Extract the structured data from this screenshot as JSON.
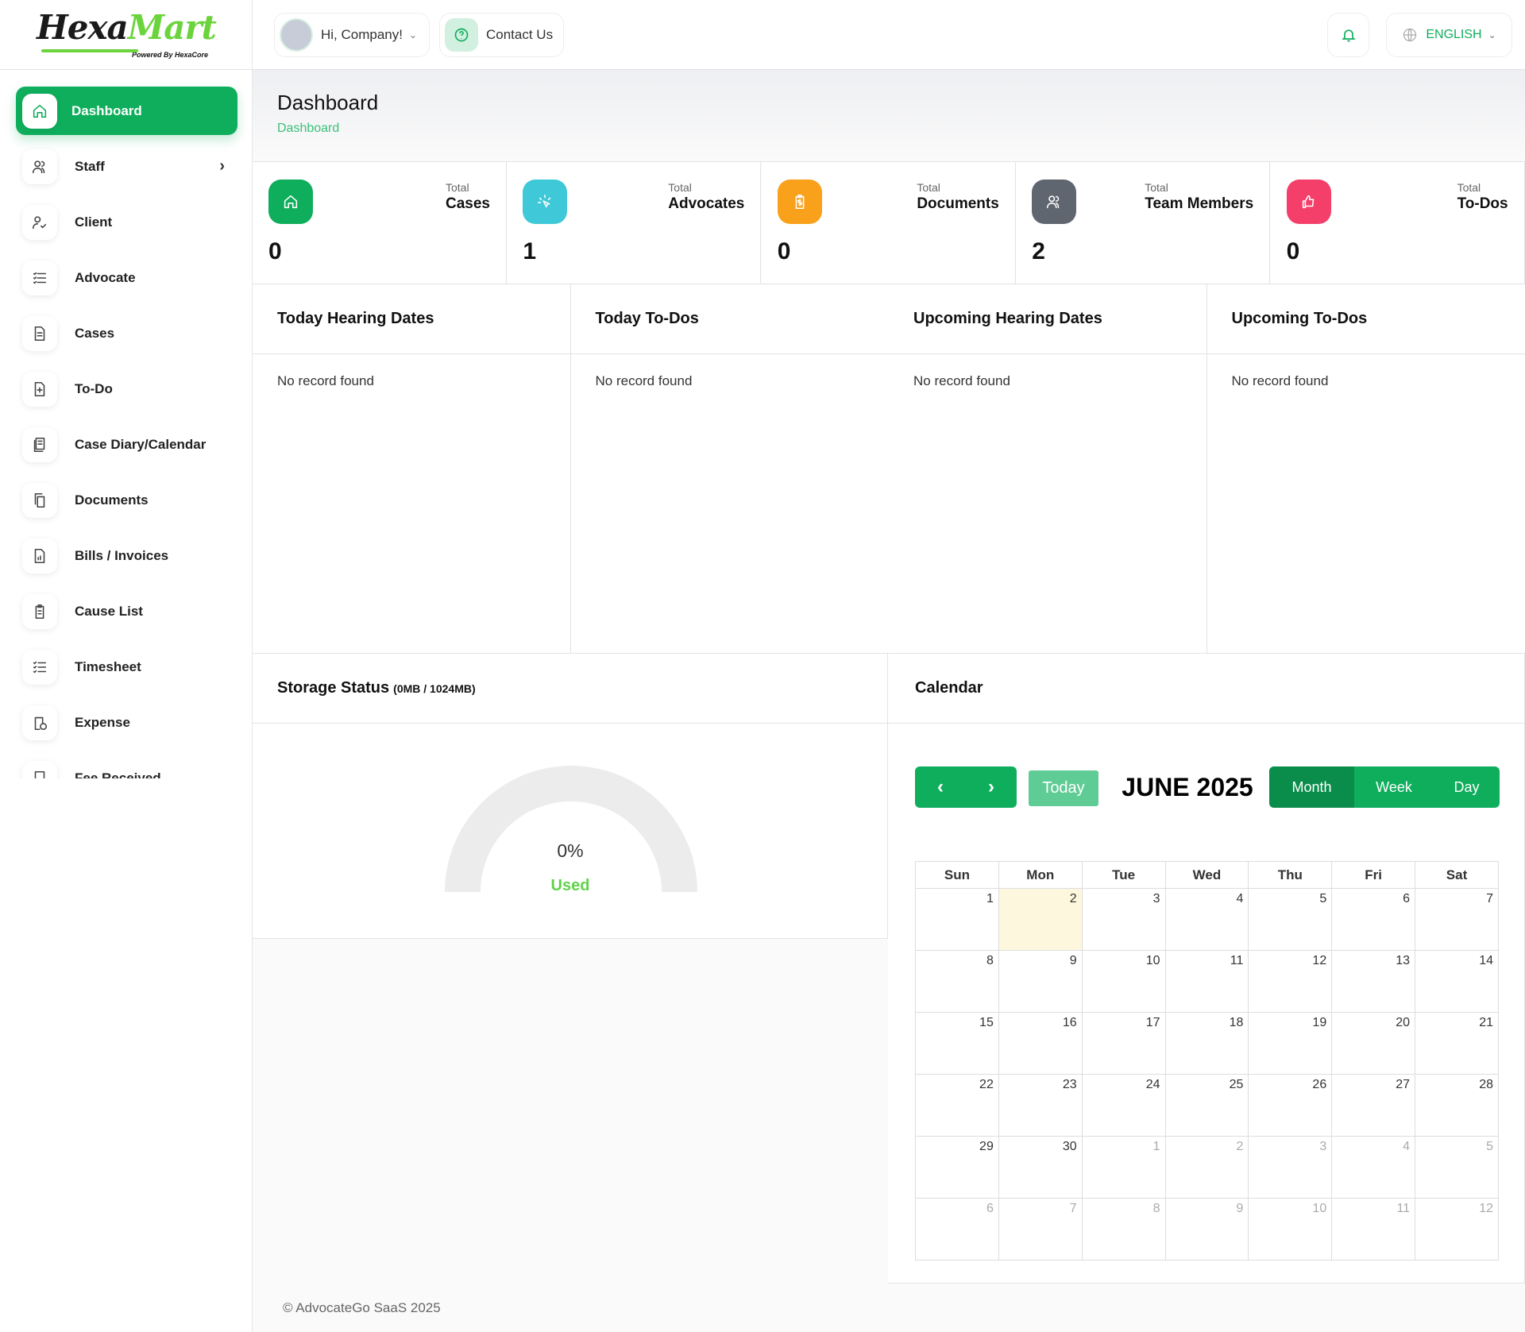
{
  "brand": {
    "logo_main_a": "Hexa",
    "logo_main_b": "Mart",
    "logo_sub": "Powered By HexaCore"
  },
  "sidebar": {
    "items": [
      {
        "label": "Dashboard",
        "icon": "home-icon",
        "active": true
      },
      {
        "label": "Staff",
        "icon": "users-icon",
        "has_submenu": true
      },
      {
        "label": "Client",
        "icon": "user-check-icon"
      },
      {
        "label": "Advocate",
        "icon": "list-icon"
      },
      {
        "label": "Cases",
        "icon": "file-text-icon"
      },
      {
        "label": "To-Do",
        "icon": "file-plus-icon"
      },
      {
        "label": "Case Diary/Calendar",
        "icon": "diary-icon"
      },
      {
        "label": "Documents",
        "icon": "copy-icon"
      },
      {
        "label": "Bills / Invoices",
        "icon": "invoice-icon"
      },
      {
        "label": "Cause List",
        "icon": "clipboard-icon"
      },
      {
        "label": "Timesheet",
        "icon": "checklist-icon"
      },
      {
        "label": "Expense",
        "icon": "expense-icon"
      },
      {
        "label": "Fee Received",
        "icon": "fee-icon"
      }
    ]
  },
  "header": {
    "greeting": "Hi, Company!",
    "contact": "Contact Us",
    "language": "ENGLISH"
  },
  "page": {
    "title": "Dashboard",
    "breadcrumb": "Dashboard"
  },
  "stats": [
    {
      "pre": "Total",
      "label": "Cases",
      "value": "0",
      "color": "#0fae5c",
      "icon": "home-icon"
    },
    {
      "pre": "Total",
      "label": "Advocates",
      "value": "1",
      "color": "#3ec8d8",
      "icon": "click-icon"
    },
    {
      "pre": "Total",
      "label": "Documents",
      "value": "0",
      "color": "#f9a11b",
      "icon": "clipboard-dollar-icon"
    },
    {
      "pre": "Total",
      "label": "Team Members",
      "value": "2",
      "color": "#5f6670",
      "icon": "users-icon"
    },
    {
      "pre": "Total",
      "label": "To-Dos",
      "value": "0",
      "color": "#f43f6b",
      "icon": "thumbs-up-icon"
    }
  ],
  "panels": [
    {
      "title": "Today Hearing Dates",
      "empty": "No record found"
    },
    {
      "title": "Today To-Dos",
      "empty": "No record found"
    },
    {
      "title": "Upcoming Hearing Dates",
      "empty": "No record found"
    },
    {
      "title": "Upcoming To-Dos",
      "empty": "No record found"
    }
  ],
  "storage": {
    "title": "Storage Status",
    "usage": "(0MB / 1024MB)",
    "percent_label": "0%",
    "used_label": "Used",
    "percent": 0
  },
  "calendar": {
    "title": "Calendar",
    "month_label": "JUNE 2025",
    "today": "Today",
    "views": [
      "Month",
      "Week",
      "Day"
    ],
    "active_view": "Month",
    "weekdays": [
      "Sun",
      "Mon",
      "Tue",
      "Wed",
      "Thu",
      "Fri",
      "Sat"
    ],
    "weeks": [
      [
        "1",
        "2",
        "3",
        "4",
        "5",
        "6",
        "7"
      ],
      [
        "8",
        "9",
        "10",
        "11",
        "12",
        "13",
        "14"
      ],
      [
        "15",
        "16",
        "17",
        "18",
        "19",
        "20",
        "21"
      ],
      [
        "22",
        "23",
        "24",
        "25",
        "26",
        "27",
        "28"
      ],
      [
        "29",
        "30",
        "1",
        "2",
        "3",
        "4",
        "5"
      ],
      [
        "6",
        "7",
        "8",
        "9",
        "10",
        "11",
        "12"
      ]
    ],
    "highlighted_day": "2"
  },
  "footer": "© AdvocateGo SaaS 2025"
}
